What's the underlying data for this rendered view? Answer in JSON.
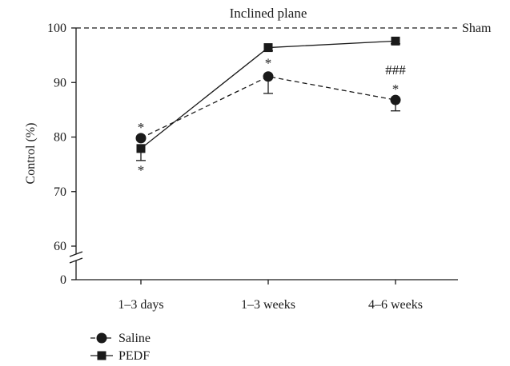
{
  "chart_data": {
    "type": "line",
    "title": "Inclined plane",
    "ylabel": "Control (%)",
    "xlabel": "",
    "categories": [
      "1–3 days",
      "1–3 weeks",
      "4–6 weeks"
    ],
    "ylim": [
      0,
      100
    ],
    "axis_break": [
      0,
      60
    ],
    "yticks": [
      0,
      60,
      70,
      80,
      90,
      100
    ],
    "y_tick_labels": [
      "0",
      "60",
      "70",
      "80",
      "90",
      "100"
    ],
    "grid": false,
    "reference_line": {
      "value": 100,
      "label": "Sham",
      "style": "dashed"
    },
    "series": [
      {
        "name": "Saline",
        "marker": "circle",
        "line_style": "dashed",
        "values": [
          79.8,
          91.1,
          86.8
        ],
        "error_minus": [
          0,
          3.1,
          2.0
        ],
        "error_plus": [
          0,
          0,
          0
        ]
      },
      {
        "name": "PEDF",
        "marker": "square",
        "line_style": "solid",
        "values": [
          77.9,
          96.4,
          97.6
        ],
        "error_minus": [
          2.2,
          0.6,
          0.5
        ],
        "error_plus": [
          0,
          0,
          0
        ]
      }
    ],
    "annotations": [
      {
        "category": "1–3 days",
        "y": 81.8,
        "text": "*"
      },
      {
        "category": "1–3 days",
        "y": 74.0,
        "text": "*"
      },
      {
        "category": "1–3 weeks",
        "y": 93.6,
        "text": "*"
      },
      {
        "category": "4–6 weeks",
        "y": 92.4,
        "text": "###"
      },
      {
        "category": "4–6 weeks",
        "y": 88.9,
        "text": "*"
      }
    ],
    "legend_position": "bottom-left",
    "colors": {
      "ink": "#1a1a1a"
    }
  }
}
